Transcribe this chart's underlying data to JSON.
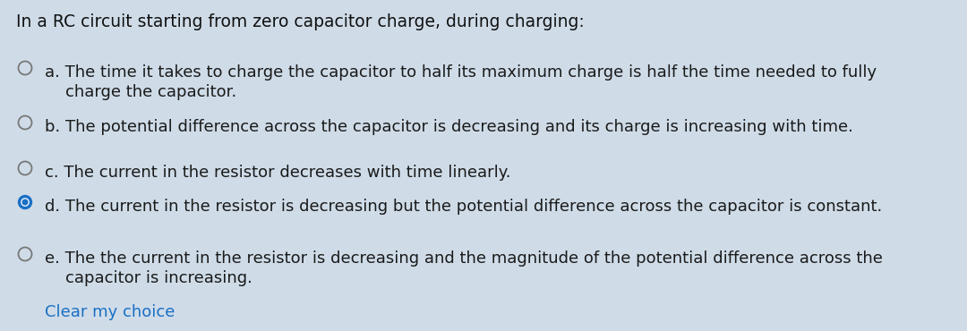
{
  "background_color": "#cfdce8",
  "title": "In a RC circuit starting from zero capacitor charge, during charging:",
  "title_fontsize": 13.5,
  "title_color": "#111111",
  "options": [
    {
      "label": "a",
      "selected": false,
      "lines": [
        "a. The time it takes to charge the capacitor to half its maximum charge is half the time needed to fully",
        "    charge the capacitor."
      ]
    },
    {
      "label": "b",
      "selected": false,
      "lines": [
        "b. The potential difference across the capacitor is decreasing and its charge is increasing with time."
      ]
    },
    {
      "label": "c",
      "selected": false,
      "lines": [
        "c. The current in the resistor decreases with time linearly."
      ]
    },
    {
      "label": "d",
      "selected": true,
      "lines": [
        "d. The current in the resistor is decreasing but the potential difference across the capacitor is constant."
      ]
    },
    {
      "label": "e",
      "selected": false,
      "lines": [
        "e. The the current in the resistor is decreasing and the magnitude of the potential difference across the",
        "    capacitor is increasing."
      ]
    }
  ],
  "clear_text": "Clear my choice",
  "clear_color": "#1a6fc4",
  "radio_color_empty": "#777777",
  "radio_color_filled": "#1a6fc4",
  "radio_fill_inner": "#1a6fc4",
  "text_color": "#1a1a1a",
  "text_fontsize": 13.0,
  "fig_width": 10.8,
  "fig_height": 3.7,
  "dpi": 100
}
